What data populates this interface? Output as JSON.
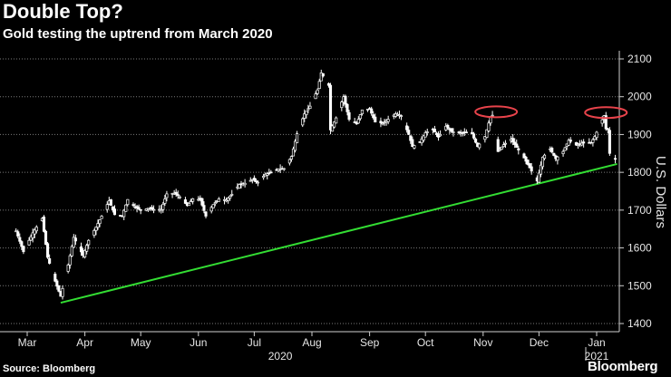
{
  "header": {
    "title": "Double Top?",
    "subtitle": "Gold testing the uptrend from March 2020"
  },
  "footer": {
    "source": "Source: Bloomberg",
    "brand": "Bloomberg"
  },
  "colors": {
    "background": "#000000",
    "candle": "#ffffff",
    "trendline": "#33dd33",
    "highlight": "#e8434b",
    "grid": "#7a7a7a"
  },
  "chart_data": {
    "type": "line",
    "chart_style": "candlestick",
    "title": "Double Top?",
    "subtitle": "Gold testing the uptrend from March 2020",
    "ylabel": "U.S. Dollars",
    "ylim": [
      1380,
      2120
    ],
    "yticks": [
      1400,
      1500,
      1600,
      1700,
      1800,
      1900,
      2000,
      2100
    ],
    "grid": true,
    "y_axis_position": "right",
    "x_tick_labels": [
      "Mar",
      "Apr",
      "May",
      "Jun",
      "Jul",
      "Aug",
      "Sep",
      "Oct",
      "Nov",
      "Dec",
      "Jan"
    ],
    "x_group_labels": [
      "2020",
      "2021"
    ],
    "x_dates": [
      "2020-03-01",
      "2020-04-01",
      "2020-05-01",
      "2020-06-01",
      "2020-07-01",
      "2020-08-01",
      "2020-09-01",
      "2020-10-01",
      "2020-11-01",
      "2020-12-01",
      "2021-01-01"
    ],
    "series": [
      {
        "values": [
          [
            "2020-02-24",
            1645
          ],
          [
            "2020-02-28",
            1590
          ],
          [
            "2020-03-04",
            1640
          ],
          [
            "2020-03-09",
            1678
          ],
          [
            "2020-03-12",
            1575
          ],
          [
            "2020-03-16",
            1512
          ],
          [
            "2020-03-19",
            1472
          ],
          [
            "2020-03-23",
            1555
          ],
          [
            "2020-03-26",
            1628
          ],
          [
            "2020-03-31",
            1580
          ],
          [
            "2020-04-03",
            1620
          ],
          [
            "2020-04-07",
            1655
          ],
          [
            "2020-04-10",
            1684
          ],
          [
            "2020-04-14",
            1725
          ],
          [
            "2020-04-17",
            1688
          ],
          [
            "2020-04-21",
            1685
          ],
          [
            "2020-04-24",
            1728
          ],
          [
            "2020-04-28",
            1708
          ],
          [
            "2020-05-01",
            1700
          ],
          [
            "2020-05-05",
            1705
          ],
          [
            "2020-05-08",
            1702
          ],
          [
            "2020-05-12",
            1702
          ],
          [
            "2020-05-15",
            1743
          ],
          [
            "2020-05-19",
            1745
          ],
          [
            "2020-05-22",
            1735
          ],
          [
            "2020-05-26",
            1712
          ],
          [
            "2020-05-29",
            1730
          ],
          [
            "2020-06-02",
            1728
          ],
          [
            "2020-06-05",
            1684
          ],
          [
            "2020-06-09",
            1715
          ],
          [
            "2020-06-12",
            1730
          ],
          [
            "2020-06-16",
            1727
          ],
          [
            "2020-06-19",
            1742
          ],
          [
            "2020-06-23",
            1768
          ],
          [
            "2020-06-26",
            1771
          ],
          [
            "2020-06-30",
            1781
          ],
          [
            "2020-07-03",
            1774
          ],
          [
            "2020-07-07",
            1795
          ],
          [
            "2020-07-10",
            1799
          ],
          [
            "2020-07-14",
            1809
          ],
          [
            "2020-07-17",
            1810
          ],
          [
            "2020-07-21",
            1842
          ],
          [
            "2020-07-24",
            1902
          ],
          [
            "2020-07-28",
            1955
          ],
          [
            "2020-07-31",
            1975
          ],
          [
            "2020-08-04",
            2018
          ],
          [
            "2020-08-06",
            2063
          ],
          [
            "2020-08-10",
            2030
          ],
          [
            "2020-08-11",
            1912
          ],
          [
            "2020-08-14",
            1944
          ],
          [
            "2020-08-18",
            2000
          ],
          [
            "2020-08-21",
            1940
          ],
          [
            "2020-08-25",
            1928
          ],
          [
            "2020-08-28",
            1965
          ],
          [
            "2020-09-01",
            1968
          ],
          [
            "2020-09-04",
            1933
          ],
          [
            "2020-09-08",
            1930
          ],
          [
            "2020-09-11",
            1940
          ],
          [
            "2020-09-15",
            1955
          ],
          [
            "2020-09-18",
            1950
          ],
          [
            "2020-09-22",
            1900
          ],
          [
            "2020-09-24",
            1868
          ],
          [
            "2020-09-28",
            1880
          ],
          [
            "2020-10-01",
            1905
          ],
          [
            "2020-10-05",
            1913
          ],
          [
            "2020-10-08",
            1893
          ],
          [
            "2020-10-12",
            1922
          ],
          [
            "2020-10-15",
            1908
          ],
          [
            "2020-10-19",
            1904
          ],
          [
            "2020-10-22",
            1905
          ],
          [
            "2020-10-26",
            1902
          ],
          [
            "2020-10-29",
            1868
          ],
          [
            "2020-11-02",
            1895
          ],
          [
            "2020-11-05",
            1948
          ],
          [
            "2020-11-06",
            1951
          ],
          [
            "2020-11-09",
            1855
          ],
          [
            "2020-11-12",
            1873
          ],
          [
            "2020-11-16",
            1888
          ],
          [
            "2020-11-19",
            1866
          ],
          [
            "2020-11-23",
            1838
          ],
          [
            "2020-11-26",
            1812
          ],
          [
            "2020-11-30",
            1777
          ],
          [
            "2020-12-03",
            1840
          ],
          [
            "2020-12-07",
            1862
          ],
          [
            "2020-12-10",
            1836
          ],
          [
            "2020-12-14",
            1855
          ],
          [
            "2020-12-17",
            1885
          ],
          [
            "2020-12-21",
            1872
          ],
          [
            "2020-12-24",
            1877
          ],
          [
            "2020-12-29",
            1878
          ],
          [
            "2020-12-31",
            1895
          ],
          [
            "2021-01-05",
            1950
          ],
          [
            "2021-01-06",
            1915
          ],
          [
            "2021-01-07",
            1913
          ],
          [
            "2021-01-08",
            1850
          ],
          [
            "2021-01-11",
            1835
          ]
        ]
      }
    ],
    "trendline": [
      [
        "2020-03-19",
        1455
      ],
      [
        "2021-01-12",
        1822
      ]
    ],
    "highlights": [
      {
        "date": "2020-11-08",
        "value": 1960
      },
      {
        "date": "2021-01-06",
        "value": 1958
      }
    ]
  }
}
